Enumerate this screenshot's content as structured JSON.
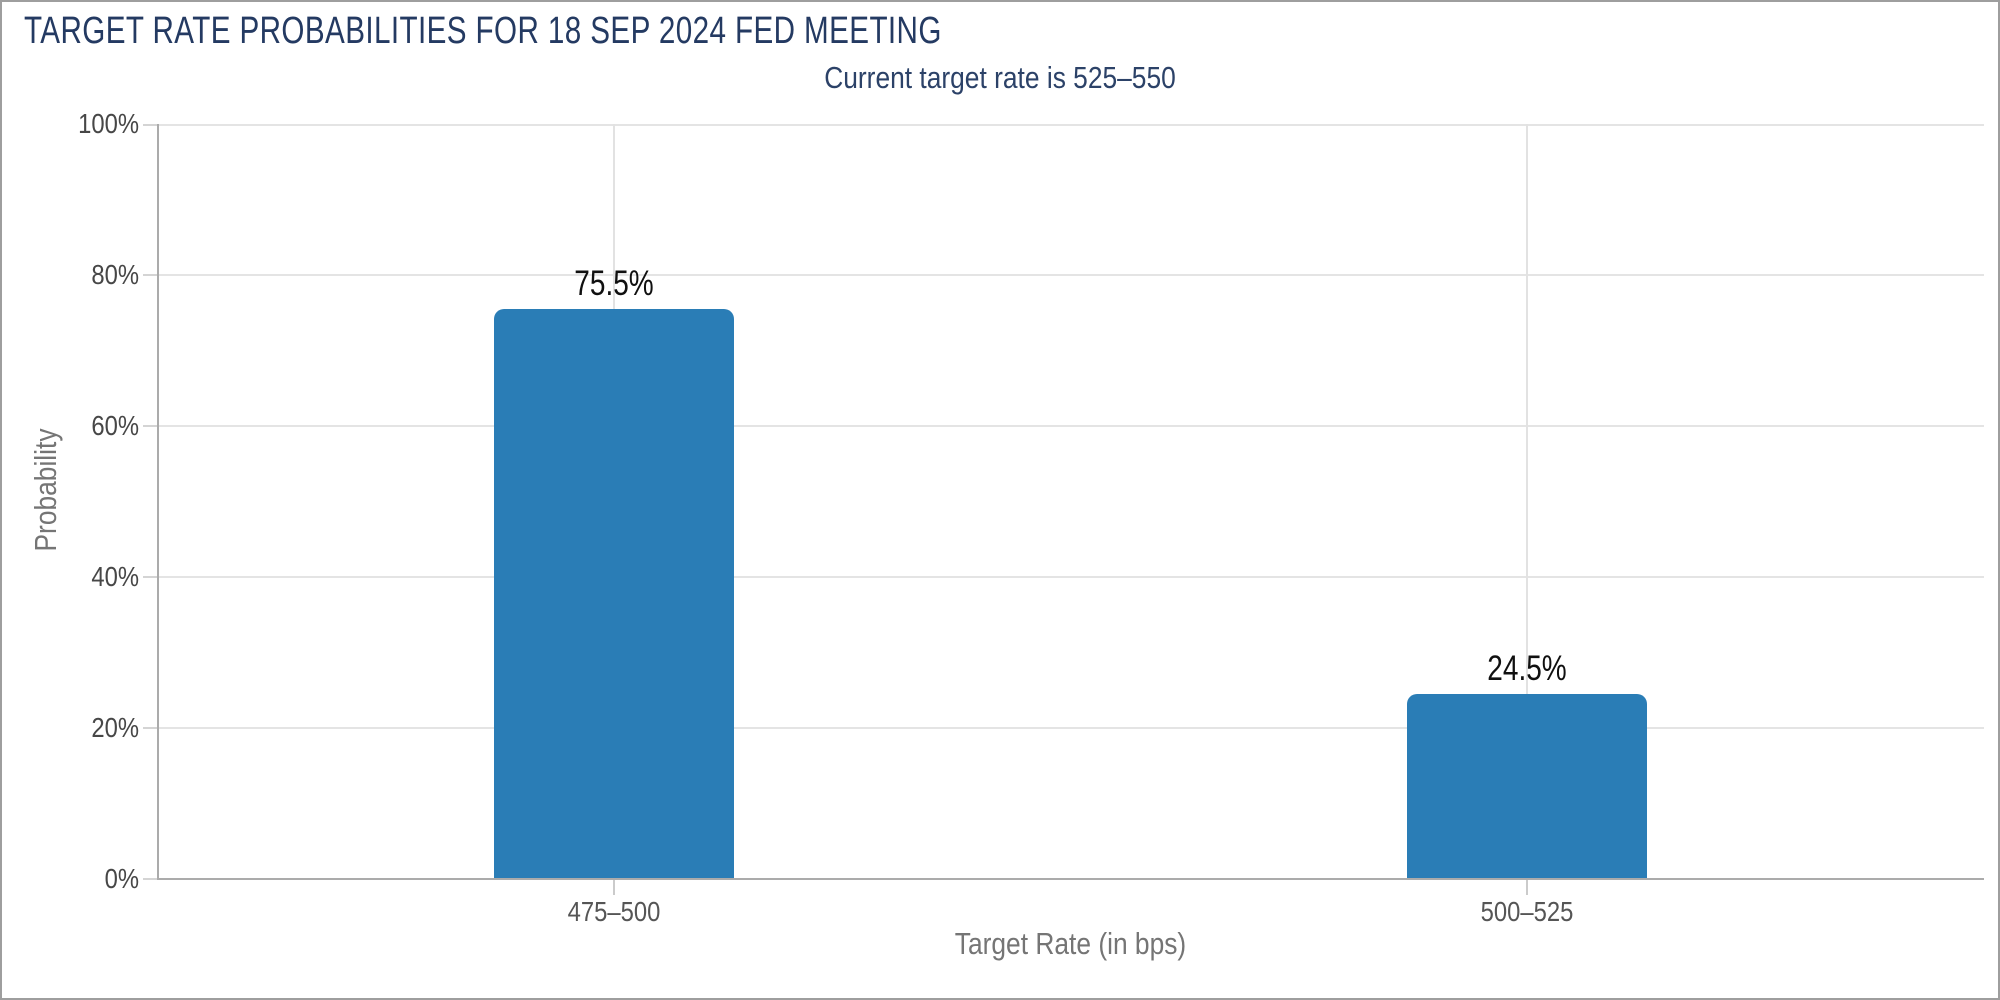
{
  "chart_data": {
    "type": "bar",
    "title": "TARGET RATE PROBABILITIES FOR 18 SEP 2024 FED MEETING",
    "subtitle": "Current target rate is 525–550",
    "current_target_rate": "525–550",
    "categories": [
      "475–500",
      "500–525"
    ],
    "values": [
      75.5,
      24.5
    ],
    "value_labels": [
      "75.5%",
      "24.5%"
    ],
    "xlabel": "Target Rate (in bps)",
    "ylabel": "Probability",
    "ylim": [
      0,
      100
    ],
    "ytick_values": [
      0,
      20,
      40,
      60,
      80,
      100
    ],
    "yticks": [
      "0%",
      "20%",
      "40%",
      "60%",
      "80%",
      "100%"
    ],
    "grid": true,
    "legend": "none",
    "colors": {
      "bar": "#2a7db6",
      "title_text": "#243a62",
      "subtitle_text": "#2c4268",
      "axis_line": "#ababab",
      "gridline": "#e4e4e4",
      "tick_label": "#474747",
      "axis_title": "#757575",
      "value_label": "#101010",
      "frame_border": "#9e9e9e"
    }
  }
}
